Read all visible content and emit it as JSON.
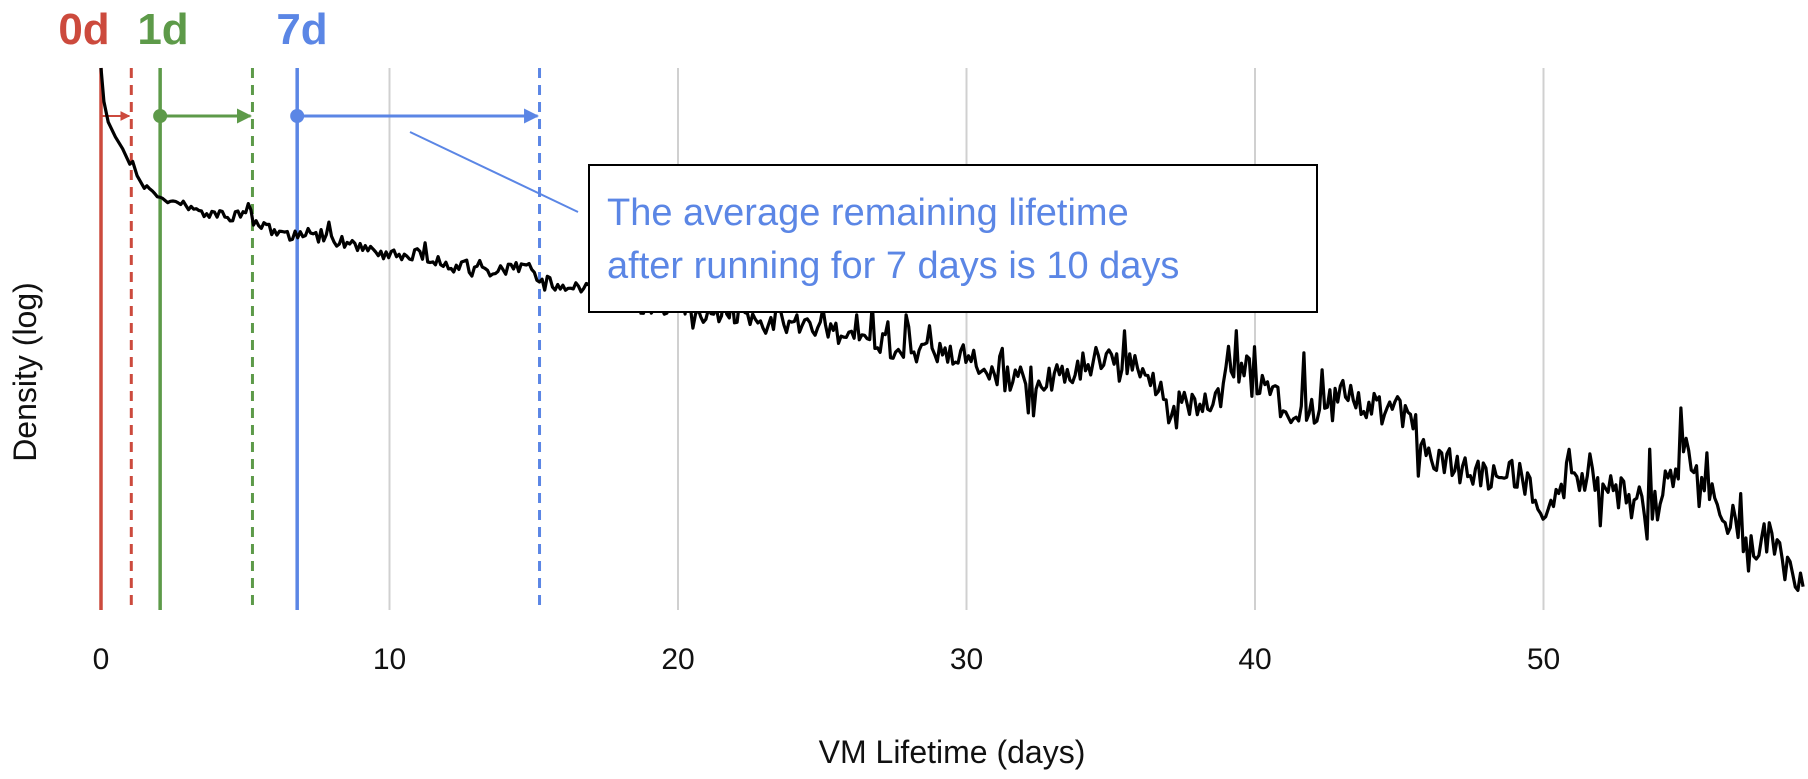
{
  "chart_data": {
    "type": "line",
    "xlabel": "VM Lifetime (days)",
    "ylabel": "Density (log)",
    "xlim": [
      0,
      59
    ],
    "x_ticks": [
      0,
      10,
      20,
      30,
      40,
      50
    ],
    "y_scale": "log",
    "y_ticks_shown": false,
    "grid": "vertical",
    "series": [
      {
        "color": "#000000",
        "x": [
          0,
          0.1,
          0.25,
          0.5,
          0.75,
          1,
          1.1,
          1.25,
          1.5,
          2,
          2.5,
          3,
          3.5,
          4,
          4.5,
          5,
          5.5,
          6,
          6.5,
          7,
          8,
          9,
          10,
          11,
          12,
          13,
          14,
          15,
          15.3,
          16,
          17,
          18,
          19,
          20,
          21,
          22,
          23,
          24,
          25,
          26,
          27,
          28,
          29,
          30,
          31,
          32,
          33,
          34,
          35,
          36,
          37,
          38,
          39,
          40,
          41,
          42,
          43,
          44,
          45,
          46,
          47,
          48,
          49,
          50,
          51,
          52,
          53,
          54,
          55,
          56,
          57,
          58,
          59
        ],
        "y": [
          1.0,
          0.78,
          0.67,
          0.6,
          0.55,
          0.49,
          0.5,
          0.45,
          0.41,
          0.39,
          0.37,
          0.36,
          0.34,
          0.34,
          0.33,
          0.34,
          0.31,
          0.3,
          0.29,
          0.29,
          0.28,
          0.27,
          0.25,
          0.25,
          0.23,
          0.23,
          0.22,
          0.23,
          0.2,
          0.2,
          0.19,
          0.18,
          0.17,
          0.17,
          0.16,
          0.16,
          0.15,
          0.15,
          0.14,
          0.14,
          0.13,
          0.12,
          0.12,
          0.12,
          0.1,
          0.1,
          0.1,
          0.11,
          0.12,
          0.11,
          0.09,
          0.08,
          0.09,
          0.12,
          0.08,
          0.08,
          0.09,
          0.08,
          0.08,
          0.06,
          0.05,
          0.05,
          0.05,
          0.04,
          0.05,
          0.05,
          0.04,
          0.04,
          0.06,
          0.04,
          0.03,
          0.03,
          0.02
        ]
      }
    ],
    "markers": [
      {
        "label": "0d",
        "start": 0,
        "end": 1.05,
        "color": "#cc4a3d"
      },
      {
        "label": "1d",
        "start": 2.05,
        "end": 5.25,
        "color": "#5d9a49"
      },
      {
        "label": "7d",
        "start": 6.8,
        "end": 15.2,
        "color": "#5b86e5"
      }
    ],
    "annotation": {
      "lines": [
        "The average remaining lifetime",
        "after running for 7 days is 10 days"
      ],
      "color": "#5b86e5"
    }
  }
}
